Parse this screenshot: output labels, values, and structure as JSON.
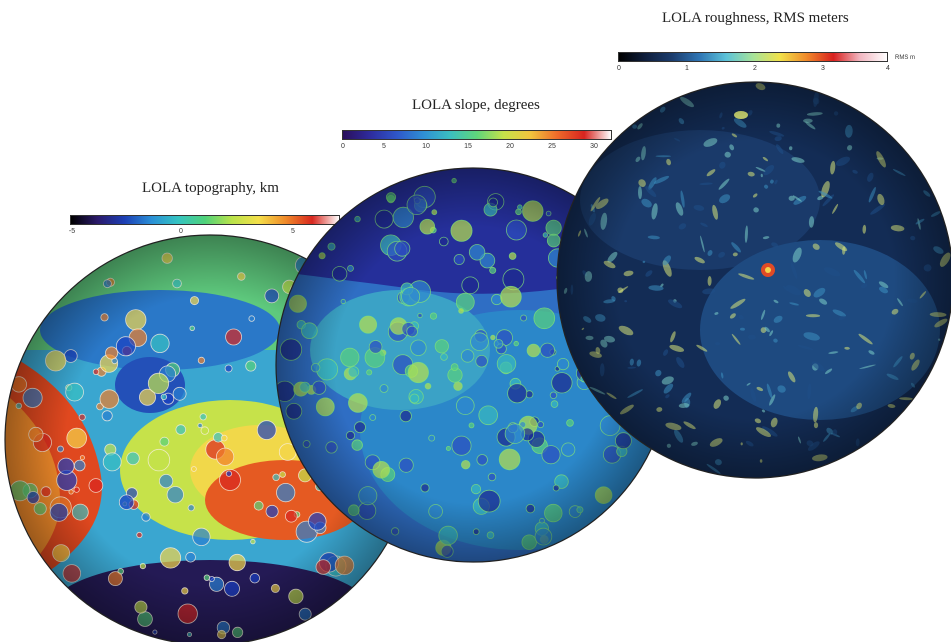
{
  "panels": [
    {
      "id": "topography",
      "title": "LOLA topography, km",
      "ticks": [
        "-5",
        "0",
        "5"
      ],
      "colors": [
        "#000000",
        "#2b1a6b",
        "#1d3fb5",
        "#2a8fd6",
        "#35c4c2",
        "#4fd27a",
        "#b9e34a",
        "#f4e04a",
        "#f08b2a",
        "#d8281f",
        "#ffffff"
      ]
    },
    {
      "id": "slope",
      "title": "LOLA slope, degrees",
      "ticks": [
        "0",
        "5",
        "10",
        "15",
        "20",
        "25",
        "30"
      ],
      "colors": [
        "#2a0f5c",
        "#2e2b9c",
        "#2f56c9",
        "#2f8fd4",
        "#3bbfc0",
        "#5fd57b",
        "#c6e24a",
        "#f2c43e",
        "#ef6a2a",
        "#d7241f",
        "#ffffff"
      ]
    },
    {
      "id": "roughness",
      "title": "LOLA roughness, RMS meters",
      "unit": "RMS m",
      "ticks": [
        "0",
        "1",
        "2",
        "3",
        "4"
      ],
      "colors": [
        "#000000",
        "#0f1f3d",
        "#1c3d6e",
        "#2f75b4",
        "#5cc2d8",
        "#a6e39a",
        "#f1e24a",
        "#f08a2b",
        "#d8211f",
        "#f2b8c2",
        "#ffffff"
      ]
    }
  ],
  "globes": {
    "topography": [
      "#1a3ec0",
      "#2a7fd0",
      "#37c1c2",
      "#56d27a",
      "#c3e34a",
      "#f3d54a",
      "#ef7f2a",
      "#d8251f"
    ],
    "slope": [
      "#1d2a8e",
      "#2c4fbf",
      "#2f89cf",
      "#39b9bf",
      "#58d07e",
      "#b8e14d"
    ],
    "roughness": [
      "#0a1630",
      "#132c55",
      "#1f4f86",
      "#3d8fbf",
      "#7ed0c8",
      "#d9e67a"
    ]
  }
}
